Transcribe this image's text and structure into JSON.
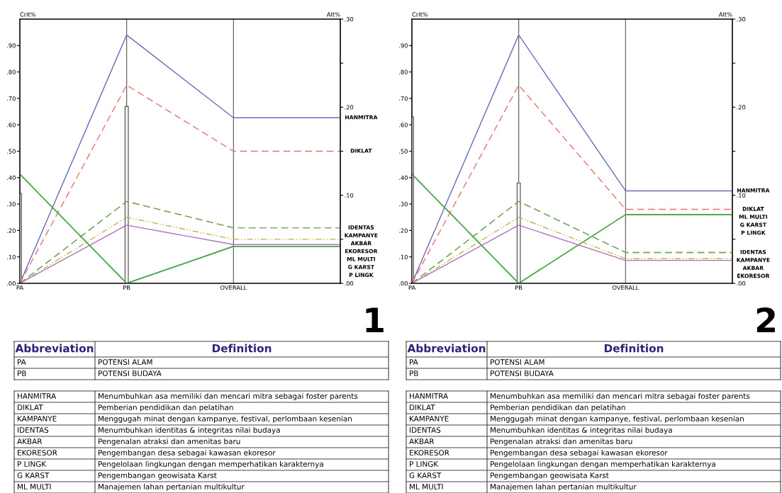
{
  "chart_data": [
    {
      "type": "line",
      "categories": [
        "PA",
        "PB",
        "OVERALL",
        null
      ],
      "ylabel": "Crit%",
      "y2label": "Alt%",
      "ylim": [
        0,
        1.0
      ],
      "yticks": [
        {
          "value": 0,
          "label": ".00"
        },
        {
          "value": 0.1,
          "label": ".10"
        },
        {
          "value": 0.2,
          "label": ".20"
        },
        {
          "value": 0.3,
          "label": ".30"
        },
        {
          "value": 0.4,
          "label": ".40"
        },
        {
          "value": 0.5,
          "label": ".50"
        },
        {
          "value": 0.6,
          "label": ".60"
        },
        {
          "value": 0.7,
          "label": ".70"
        },
        {
          "value": 0.8,
          "label": ".80"
        },
        {
          "value": 0.9,
          "label": ".90"
        }
      ],
      "y2lim": [
        0,
        0.3
      ],
      "y2ticks": [
        {
          "value": 0,
          "label": ".00"
        },
        {
          "value": 0.05,
          "label": null
        },
        {
          "value": 0.1,
          "label": ".10"
        },
        {
          "value": 0.15,
          "label": null
        },
        {
          "value": 0.2,
          "label": ".20"
        },
        {
          "value": 0.25,
          "label": null
        },
        {
          "value": 0.3,
          "label": ".30"
        }
      ],
      "grid": "x",
      "legend": false,
      "series": [
        {
          "type": "bar",
          "axis": "y",
          "color": "#ffffff",
          "values": [
            0.34,
            0.67,
            null,
            null
          ]
        },
        {
          "name": "HANMITRA",
          "axis": "y2",
          "color": "#6b6bb8",
          "line_style": "solid",
          "values": [
            0,
            0.282,
            0.188,
            0.188
          ]
        },
        {
          "name": "DIKLAT",
          "axis": "y2",
          "color": "#e87070",
          "line_style": "dashed",
          "values": [
            0,
            0.225,
            0.15,
            0.15
          ]
        },
        {
          "name": "IDENTAS",
          "axis": "y2",
          "color": "#7aa860",
          "line_style": "dashed",
          "values": [
            0,
            0.093,
            0.063,
            0.063
          ]
        },
        {
          "name": "KAMPANYE",
          "axis": "y2",
          "color": "#7aa860",
          "line_style": "dashed",
          "values": [
            0,
            0.093,
            0.063,
            0.063
          ]
        },
        {
          "name": "AKBAR",
          "axis": "y2",
          "color": "#b8b840",
          "line_style": "dashdot",
          "values": [
            0,
            0.075,
            0.05,
            0.05
          ]
        },
        {
          "name": "EKORESOR",
          "axis": "y2",
          "color": "#b070c0",
          "line_style": "solid",
          "values": [
            0,
            0.066,
            0.044,
            0.044
          ]
        },
        {
          "name": "ML MULTI",
          "axis": "y2",
          "color": "#50a850",
          "line_style": "solid",
          "values": [
            0.124,
            0,
            0.042,
            0.042
          ]
        },
        {
          "name": "G KARST",
          "axis": "y2",
          "color": "#50a850",
          "line_style": "solid",
          "values": [
            0.124,
            0,
            0.042,
            0.042
          ]
        },
        {
          "name": "P LINGK",
          "axis": "y2",
          "color": "#50a850",
          "line_style": "solid",
          "values": [
            0.124,
            0,
            0.042,
            0.042
          ]
        }
      ],
      "annotations": [
        "1",
        "Abbreviation",
        "Definition",
        "PA",
        "POTENSI ALAM",
        "PB",
        "POTENSI BUDAYA",
        "HANMITRA",
        "Menumbuhkan asa memiliki dan mencari mitra sebagai foster parents",
        "DIKLAT",
        "Pemberian pendidikan dan pelatihan",
        "KAMPANYE",
        "Menggugah minat dengan kampanye, festival, perlombaan kesenian",
        "IDENTAS",
        "Menumbuhkan identitas & integritas nilai budaya",
        "AKBAR",
        "Pengenalan atraksi dan amenitas baru",
        "EKORESOR",
        "Pengembangan desa sebagai kawasan ekoresor",
        "P LINGK",
        "Pengelolaan lingkungan dengan memperhatikan karakternya",
        "G KARST",
        "Pengembangan geowisata Karst",
        "ML MULTI",
        "Manajemen lahan pertanian multikultur"
      ]
    },
    {
      "type": "line",
      "categories": [
        "PA",
        "PB",
        "OVERALL",
        null
      ],
      "ylabel": "Crit%",
      "y2label": "Alt%",
      "ylim": [
        0,
        1.0
      ],
      "yticks": [
        {
          "value": 0,
          "label": ".00"
        },
        {
          "value": 0.1,
          "label": ".10"
        },
        {
          "value": 0.2,
          "label": ".20"
        },
        {
          "value": 0.3,
          "label": ".30"
        },
        {
          "value": 0.4,
          "label": ".40"
        },
        {
          "value": 0.5,
          "label": ".50"
        },
        {
          "value": 0.6,
          "label": ".60"
        },
        {
          "value": 0.7,
          "label": ".70"
        },
        {
          "value": 0.8,
          "label": ".80"
        },
        {
          "value": 0.9,
          "label": ".90"
        }
      ],
      "y2lim": [
        0,
        0.3
      ],
      "y2ticks": [
        {
          "value": 0,
          "label": ".00"
        },
        {
          "value": 0.05,
          "label": null
        },
        {
          "value": 0.1,
          "label": ".10"
        },
        {
          "value": 0.15,
          "label": null
        },
        {
          "value": 0.2,
          "label": ".20"
        },
        {
          "value": 0.25,
          "label": null
        },
        {
          "value": 0.3,
          "label": ".30"
        }
      ],
      "grid": "x",
      "legend": false,
      "series": [
        {
          "type": "bar",
          "axis": "y",
          "color": "#ffffff",
          "values": [
            0.63,
            0.38,
            null,
            null
          ]
        },
        {
          "name": "HANMITRA",
          "axis": "y2",
          "color": "#6b6bb8",
          "line_style": "solid",
          "values": [
            0,
            0.282,
            0.105,
            0.105
          ]
        },
        {
          "name": "DIKLAT",
          "axis": "y2",
          "color": "#e87070",
          "line_style": "dashed",
          "values": [
            0,
            0.225,
            0.084,
            0.084
          ]
        },
        {
          "name": "ML MULTI",
          "axis": "y2",
          "color": "#50a850",
          "line_style": "solid",
          "values": [
            0.124,
            0,
            0.078,
            0.078
          ]
        },
        {
          "name": "G KARST",
          "axis": "y2",
          "color": "#50a850",
          "line_style": "solid",
          "values": [
            0.124,
            0,
            0.078,
            0.078
          ]
        },
        {
          "name": "P LINGK",
          "axis": "y2",
          "color": "#50a850",
          "line_style": "solid",
          "values": [
            0.124,
            0,
            0.078,
            0.078
          ]
        },
        {
          "name": "IDENTAS",
          "axis": "y2",
          "color": "#7aa860",
          "line_style": "dashed",
          "values": [
            0,
            0.093,
            0.035,
            0.035
          ]
        },
        {
          "name": "KAMPANYE",
          "axis": "y2",
          "color": "#7aa860",
          "line_style": "dashed",
          "values": [
            0,
            0.093,
            0.035,
            0.035
          ]
        },
        {
          "name": "AKBAR",
          "axis": "y2",
          "color": "#b8b840",
          "line_style": "dashdot",
          "values": [
            0,
            0.075,
            0.028,
            0.028
          ]
        },
        {
          "name": "EKORESOR",
          "axis": "y2",
          "color": "#b070c0",
          "line_style": "solid",
          "values": [
            0,
            0.066,
            0.026,
            0.026
          ]
        }
      ],
      "annotations": [
        "2",
        "Abbreviation",
        "Definition",
        "PA",
        "POTENSI ALAM",
        "PB",
        "POTENSI BUDAYA",
        "HANMITRA",
        "Menumbuhkan asa memiliki dan mencari mitra sebagai foster parents",
        "DIKLAT",
        "Pemberian pendidikan dan pelatihan",
        "KAMPANYE",
        "Menggugah minat dengan kampanye, festival, perlombaan kesenian",
        "IDENTAS",
        "Menumbuhkan identitas & integritas nilai budaya",
        "AKBAR",
        "Pengenalan atraksi dan amenitas baru",
        "EKORESOR",
        "Pengembangan desa sebagai kawasan ekoresor",
        "P LINGK",
        "Pengelolaan lingkungan dengan memperhatikan karakternya",
        "G KARST",
        "Pengembangan geowisata Karst",
        "ML MULTI",
        "Manajemen lahan pertanian multikultur"
      ]
    }
  ]
}
